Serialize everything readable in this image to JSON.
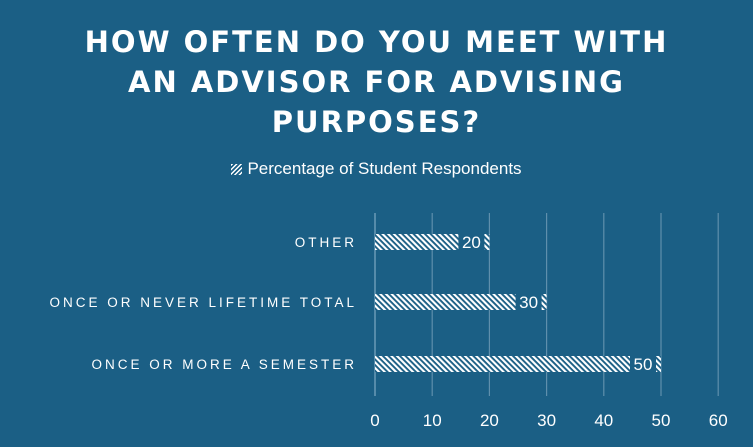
{
  "chart_data": {
    "type": "bar",
    "orientation": "horizontal",
    "title": "HOW OFTEN DO YOU MEET WITH AN ADVISOR FOR ADVISING PURPOSES?",
    "categories": [
      "OTHER",
      "ONCE OR NEVER LIFETIME TOTAL",
      "ONCE OR MORE A SEMESTER"
    ],
    "series": [
      {
        "name": "Percentage of Student Respondents",
        "values": [
          20,
          30,
          50
        ]
      }
    ],
    "data_labels": [
      "20",
      "30",
      "50"
    ],
    "xlim": [
      0,
      60
    ],
    "x_ticks": [
      0,
      10,
      20,
      30,
      40,
      50,
      60
    ],
    "grid": true,
    "legend_position": "top",
    "bar_pattern": "diagonal-hatch",
    "colors": {
      "background": "#1b5f85",
      "bar": "#ffffff",
      "grid": "#5f8fac",
      "text": "#ffffff"
    }
  }
}
